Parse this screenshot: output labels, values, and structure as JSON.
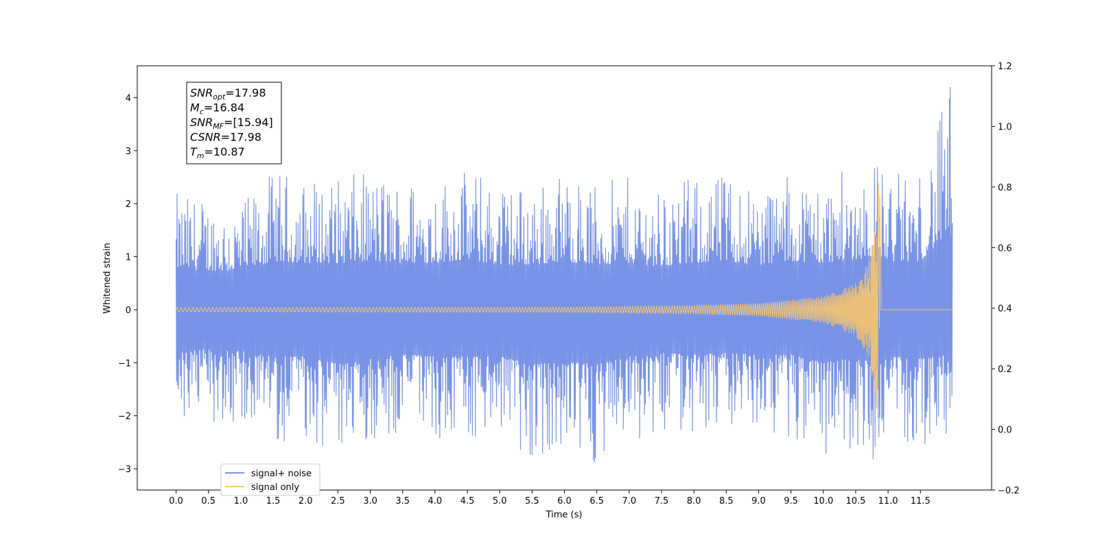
{
  "chart_data": {
    "type": "line",
    "title": "",
    "xlabel": "Time (s)",
    "ylabel": "Whitened strain",
    "xlim": [
      -0.6,
      12.6
    ],
    "ylim": [
      -3.4,
      4.6
    ],
    "ylim_right": [
      -0.2,
      1.2
    ],
    "x_ticks": [
      0.0,
      0.5,
      1.0,
      1.5,
      2.0,
      2.5,
      3.0,
      3.5,
      4.0,
      4.5,
      5.0,
      5.5,
      6.0,
      6.5,
      7.0,
      7.5,
      8.0,
      8.5,
      9.0,
      9.5,
      10.0,
      10.5,
      11.0,
      11.5
    ],
    "x_tick_labels": [
      "0.0",
      "0.5",
      "1.0",
      "1.5",
      "2.0",
      "2.5",
      "3.0",
      "3.5",
      "4.0",
      "4.5",
      "5.0",
      "5.5",
      "6.0",
      "6.5",
      "7.0",
      "7.5",
      "8.0",
      "8.5",
      "9.0",
      "9.5",
      "10.0",
      "10.5",
      "11.0",
      "11.5"
    ],
    "y_ticks": [
      -3,
      -2,
      -1,
      0,
      1,
      2,
      3,
      4
    ],
    "y_tick_labels": [
      "−3",
      "−2",
      "−1",
      "0",
      "1",
      "2",
      "3",
      "4"
    ],
    "y_right_ticks": [
      -0.2,
      0.0,
      0.2,
      0.4,
      0.6,
      0.8,
      1.0,
      1.2
    ],
    "y_right_tick_labels": [
      "−0.2",
      "0.0",
      "0.2",
      "0.4",
      "0.6",
      "0.8",
      "1.0",
      "1.2"
    ],
    "grid": false,
    "legend_position": "lower-left",
    "series": [
      {
        "name": "signal+ noise",
        "color": "#7893e6",
        "x_range": [
          0.0,
          12.0
        ],
        "envelope": {
          "x": [
            0.0,
            0.5,
            1.0,
            1.5,
            2.0,
            2.5,
            3.0,
            3.5,
            4.0,
            4.5,
            5.0,
            5.5,
            6.0,
            6.5,
            7.0,
            7.5,
            8.0,
            8.5,
            9.0,
            9.5,
            10.0,
            10.5,
            10.87,
            11.0,
            11.5,
            11.96,
            12.0
          ],
          "upper": [
            2.2,
            2.1,
            2.0,
            2.6,
            2.5,
            2.5,
            2.6,
            2.5,
            2.5,
            2.7,
            2.4,
            2.4,
            2.6,
            2.4,
            2.5,
            2.3,
            2.5,
            2.6,
            2.4,
            2.6,
            2.5,
            2.7,
            2.9,
            2.6,
            2.6,
            4.2,
            1.2
          ],
          "lower": [
            -2.3,
            -2.1,
            -2.2,
            -2.5,
            -2.5,
            -2.9,
            -2.5,
            -2.4,
            -2.5,
            -2.5,
            -2.5,
            -2.9,
            -2.8,
            -2.9,
            -2.5,
            -2.3,
            -2.4,
            -2.3,
            -2.4,
            -2.4,
            -2.8,
            -2.6,
            -2.9,
            -2.5,
            -2.6,
            -2.4,
            -1.4
          ]
        }
      },
      {
        "name": "signal only",
        "color": "#ffc966",
        "merger_time": 10.87,
        "amplitude": {
          "x": [
            0.0,
            6.0,
            8.0,
            9.0,
            10.0,
            10.5,
            10.7,
            10.8,
            10.85,
            10.87,
            10.9,
            12.0
          ],
          "y": [
            0.04,
            0.05,
            0.08,
            0.12,
            0.25,
            0.5,
            0.9,
            1.6,
            2.3,
            2.6,
            0.0,
            0.0
          ]
        }
      }
    ],
    "annotation": {
      "lines": [
        {
          "label": "SNR",
          "sub": "opt",
          "value": "=17.98"
        },
        {
          "label": "M",
          "sub": "c",
          "value": "=16.84"
        },
        {
          "label": "SNR",
          "sub": "MF",
          "value": "=[15.94]"
        },
        {
          "label": "CSNR",
          "sub": "",
          "value": "=17.98"
        },
        {
          "label": "T",
          "sub": "m",
          "value": "=10.87"
        }
      ]
    }
  }
}
